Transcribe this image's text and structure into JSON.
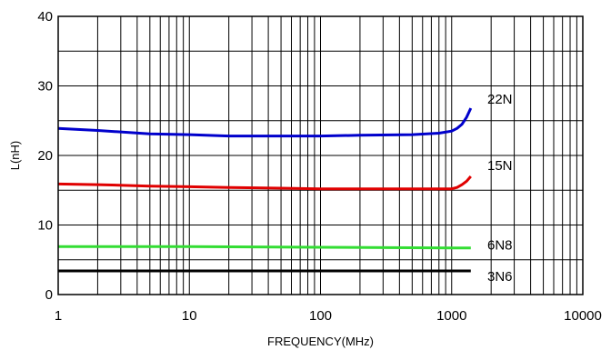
{
  "chart_data": {
    "type": "line",
    "title": "",
    "xlabel": "FREQUENCY(MHz)",
    "ylabel": "L(nH)",
    "xscale": "log",
    "xlim": [
      1,
      10000
    ],
    "ylim": [
      0,
      40
    ],
    "grid": true,
    "x_ticks": [
      1,
      10,
      100,
      1000,
      10000
    ],
    "x_tick_labels": [
      "1",
      "10",
      "100",
      "1000",
      "10000"
    ],
    "y_ticks": [
      0,
      10,
      20,
      30,
      40
    ],
    "y_tick_labels": [
      "0",
      "10",
      "20",
      "30",
      "40"
    ],
    "series": [
      {
        "name": "22N",
        "color": "#0000cc",
        "x": [
          1,
          2,
          5,
          10,
          20,
          50,
          100,
          200,
          500,
          800,
          1000,
          1100,
          1200,
          1300,
          1400
        ],
        "y": [
          23.9,
          23.6,
          23.1,
          23.0,
          22.8,
          22.8,
          22.8,
          22.9,
          23.0,
          23.2,
          23.5,
          23.9,
          24.5,
          25.5,
          26.8
        ]
      },
      {
        "name": "15N",
        "color": "#e00000",
        "x": [
          1,
          2,
          5,
          10,
          20,
          50,
          100,
          200,
          500,
          1000,
          1100,
          1200,
          1300,
          1400
        ],
        "y": [
          15.9,
          15.8,
          15.6,
          15.5,
          15.4,
          15.3,
          15.2,
          15.2,
          15.2,
          15.2,
          15.4,
          15.8,
          16.3,
          17.0
        ]
      },
      {
        "name": "6N8",
        "color": "#33dd33",
        "x": [
          1,
          10,
          100,
          1000,
          1400
        ],
        "y": [
          6.9,
          6.9,
          6.8,
          6.7,
          6.7
        ]
      },
      {
        "name": "3N6",
        "color": "#000000",
        "x": [
          1,
          10,
          100,
          1000,
          1400
        ],
        "y": [
          3.4,
          3.4,
          3.4,
          3.4,
          3.4
        ]
      }
    ]
  }
}
